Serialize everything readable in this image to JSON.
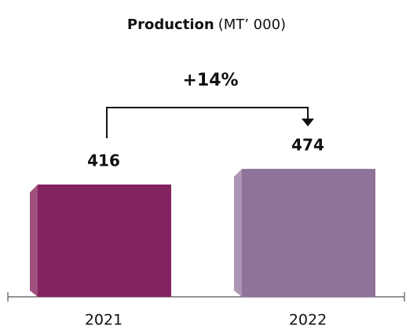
{
  "chart_data": {
    "type": "bar",
    "title": "Production",
    "unit": "(MT’ 000)",
    "annotation": "+14%",
    "categories": [
      "2021",
      "2022"
    ],
    "values": [
      416,
      474
    ],
    "colors": [
      "#82225e",
      "#8f7399"
    ],
    "side_colors": [
      "#a0517f",
      "#ab96b3"
    ]
  }
}
